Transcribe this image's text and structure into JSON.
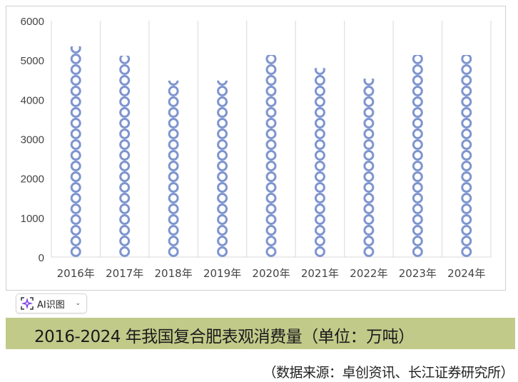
{
  "chart_data": {
    "type": "bar",
    "categories": [
      "2016年",
      "2017年",
      "2018年",
      "2019年",
      "2020年",
      "2021年",
      "2022年",
      "2023年",
      "2024年"
    ],
    "values": [
      5350,
      5110,
      4480,
      4480,
      5130,
      4800,
      4530,
      5130,
      5130
    ],
    "yticks": [
      "0",
      "1000",
      "2000",
      "3000",
      "4000",
      "5000",
      "6000"
    ],
    "ylim": [
      0,
      6000
    ],
    "grid": "vertical category separators",
    "bar_style": "stacked ring pictogram",
    "bar_color": "#7f95cf",
    "title": "2016-2024 年我国复合肥表观消费量（单位：万吨）",
    "source": "（数据来源：卓创资讯、长江证券研究所）"
  },
  "overlay": {
    "ai_button_label": "AI识图",
    "accent": "#7b3fe4"
  },
  "colors": {
    "title_band": "#c2ca8a"
  }
}
